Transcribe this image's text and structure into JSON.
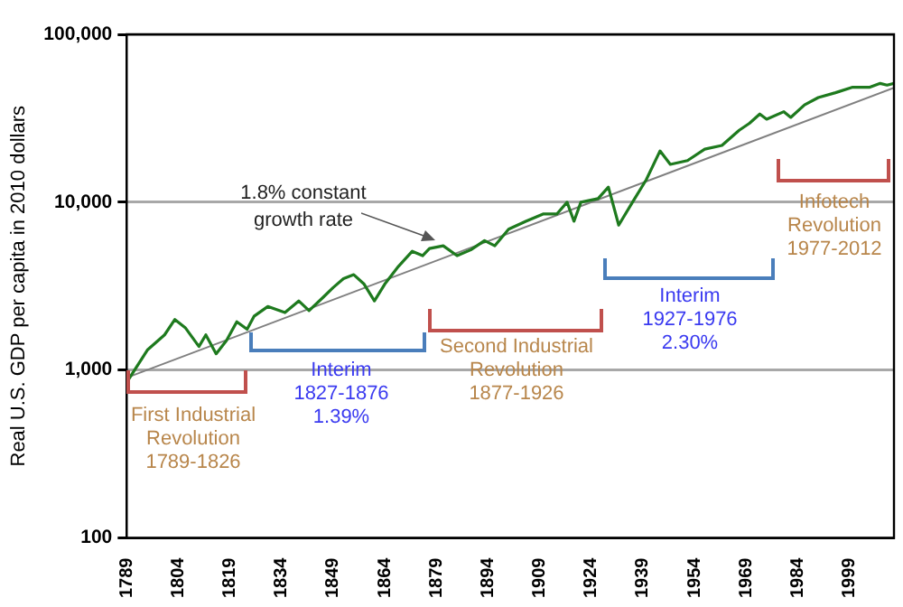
{
  "chart_data": {
    "type": "line",
    "ylabel": "Real U.S. GDP per capita in 2010 dollars",
    "x": [
      1789,
      1795,
      1800,
      1803,
      1806,
      1810,
      1812,
      1815,
      1818,
      1821,
      1824,
      1826,
      1830,
      1835,
      1839,
      1842,
      1846,
      1849,
      1852,
      1855,
      1858,
      1861,
      1864,
      1868,
      1872,
      1875,
      1877,
      1881,
      1885,
      1889,
      1893,
      1896,
      1900,
      1905,
      1910,
      1914,
      1917,
      1919,
      1921,
      1926,
      1929,
      1932,
      1936,
      1940,
      1944,
      1947,
      1952,
      1957,
      1962,
      1967,
      1970,
      1973,
      1975,
      1980,
      1982,
      1986,
      1990,
      1995,
      2000,
      2005,
      2008,
      2010,
      2012
    ],
    "series": [
      {
        "color": "#1e7a1e",
        "values": [
          845,
          1315,
          1620,
          2000,
          1790,
          1380,
          1620,
          1250,
          1500,
          1940,
          1750,
          2090,
          2390,
          2200,
          2580,
          2260,
          2700,
          3100,
          3500,
          3700,
          3250,
          2580,
          3250,
          4150,
          5100,
          4800,
          5300,
          5500,
          4800,
          5200,
          5900,
          5500,
          6900,
          7700,
          8500,
          8500,
          10000,
          7700,
          10000,
          10500,
          12300,
          7300,
          10000,
          13600,
          20200,
          16800,
          17700,
          20700,
          21800,
          26800,
          29500,
          33500,
          31200,
          34600,
          32000,
          38000,
          42000,
          44900,
          48400,
          48400,
          51000,
          49800,
          51000
        ]
      },
      {
        "type": "line",
        "color": "#808080",
        "x": [
          1789,
          2012
        ],
        "values": [
          900,
          48000
        ]
      }
    ],
    "log": "y",
    "xlim": [
      1789,
      2012
    ],
    "ylim": [
      100,
      100000
    ],
    "xticks": [
      1789,
      1804,
      1819,
      1834,
      1849,
      1864,
      1879,
      1894,
      1909,
      1924,
      1939,
      1954,
      1969,
      1984,
      1999
    ],
    "yticks": [
      {
        "value": 100,
        "label": "100"
      },
      {
        "value": 1000,
        "label": "1,000"
      },
      {
        "value": 10000,
        "label": "10,000"
      },
      {
        "value": 100000,
        "label": "100,000"
      }
    ],
    "grid": "y",
    "legend": false,
    "marker": "none",
    "line_style": "solid",
    "annotations": [
      "First Industrial\nRevolution\n1789-1826",
      "Interim\n1827-1876\n1.39%",
      "Second Industrial\nRevolution\n1877-1926",
      "Interim\n1927-1976\n2.30%",
      "Infotech\nRevolution\n1977-2012",
      "1.8% constant\ngrowth rate"
    ]
  }
}
